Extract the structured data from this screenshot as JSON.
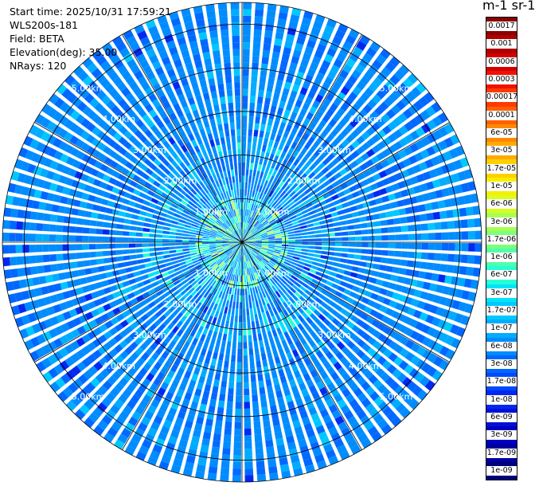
{
  "info": {
    "start_time": "Start time: 2025/10/31 17:59:21",
    "instrument": "WLS200s-181",
    "field": "Field: BETA",
    "elevation": "Elevation(deg): 35.00",
    "nrays": "NRays: 120"
  },
  "colorbar": {
    "title": "m-1 sr-1",
    "labels": [
      "0.0017",
      "0.001",
      "0.0006",
      "0.0003",
      "0.00017",
      "0.0001",
      "6e-05",
      "3e-05",
      "1.7e-05",
      "1e-05",
      "6e-06",
      "3e-06",
      "1.7e-06",
      "1e-06",
      "6e-07",
      "3e-07",
      "1.7e-07",
      "1e-07",
      "6e-08",
      "3e-08",
      "1.7e-08",
      "1e-08",
      "6e-09",
      "3e-09",
      "1.7e-09",
      "1e-09"
    ],
    "colors": [
      "#8b0000",
      "#b00000",
      "#d40000",
      "#f21000",
      "#ff3a00",
      "#ff6000",
      "#ff8800",
      "#ffaa00",
      "#ffd000",
      "#f6f000",
      "#d8ff1f",
      "#a8ff50",
      "#7cff7c",
      "#50ffaa",
      "#26ffd6",
      "#00e4f8",
      "#00c8ff",
      "#00acff",
      "#008cff",
      "#0068ff",
      "#0048ff",
      "#0028f0",
      "#0010d8",
      "#0000c0",
      "#0000a0",
      "#00007c"
    ]
  },
  "chart_data": {
    "type": "ppi_polar",
    "field": "BETA",
    "elevation_deg": 35.0,
    "n_rays": 120,
    "max_range_km": 5.5,
    "range_rings_km": [
      1.0,
      2.0,
      3.0,
      4.0,
      5.0
    ],
    "ring_labels": [
      "1.00km",
      "2.00km",
      "3.00km",
      "4.00km",
      "5.00km"
    ],
    "spoke_angles_deg": [
      0,
      30,
      60,
      90,
      120,
      150,
      180,
      210,
      240,
      270,
      300,
      330
    ],
    "dominant_value": "3e-08",
    "near_range_value_range": [
      "1.7e-07",
      "3e-06"
    ]
  }
}
